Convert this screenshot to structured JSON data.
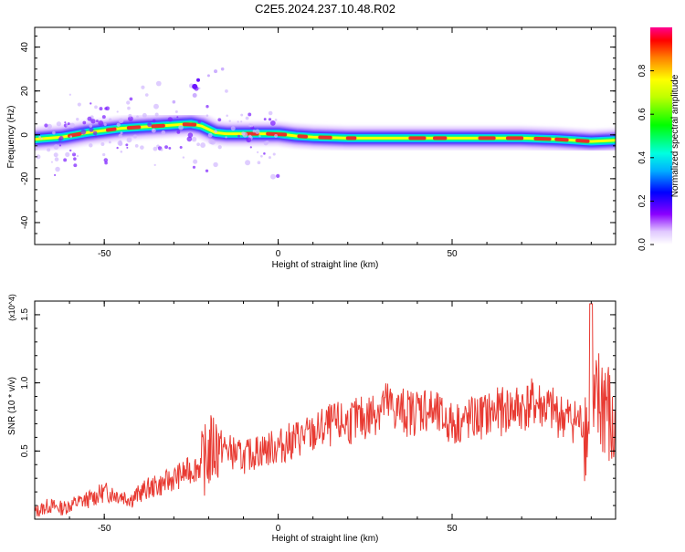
{
  "title": "C2E5.2024.237.10.48.R02",
  "chart_data": [
    {
      "type": "heatmap",
      "xlabel": "Height of straight line (km)",
      "ylabel": "Frequency (Hz)",
      "xlim": [
        -70,
        97
      ],
      "ylim": [
        -50,
        49
      ],
      "xticks": [
        -50,
        0,
        50
      ],
      "yticks": [
        -40,
        -20,
        0,
        20,
        40
      ],
      "colorbar": {
        "label": "Normalized spectral amplitude",
        "range": [
          0,
          1
        ],
        "ticks": [
          "0.0",
          "0.2",
          "0.4",
          "0.6",
          "0.8"
        ]
      },
      "ridge": {
        "x": [
          -70,
          -62,
          -55,
          -50,
          -45,
          -40,
          -35,
          -30,
          -25,
          -22,
          -18,
          -15,
          -10,
          -5,
          0,
          5,
          10,
          20,
          30,
          40,
          50,
          60,
          70,
          80,
          85,
          90,
          97
        ],
        "y": [
          -2,
          -1,
          1,
          2,
          3,
          3.5,
          4,
          4.5,
          5,
          4,
          1,
          0.5,
          0.5,
          0.5,
          0.5,
          -0.5,
          -1,
          -1.5,
          -1.5,
          -1.5,
          -1.5,
          -1.5,
          -1.5,
          -2,
          -2.5,
          -3,
          -2.5
        ]
      }
    },
    {
      "type": "line",
      "xlabel": "Height of straight line (km)",
      "ylabel": "SNR (10 * v/v)",
      "yscale_label": "(x10^4)",
      "xlim": [
        -70,
        97
      ],
      "ylim": [
        0,
        1.6
      ],
      "xticks": [
        -50,
        0,
        50
      ],
      "yticks": [
        "0.5",
        "1.0",
        "1.5"
      ],
      "series": [
        {
          "color": "#e83a32",
          "x": [
            -70,
            -66,
            -62,
            -58,
            -54,
            -50,
            -46,
            -42,
            -38,
            -34,
            -30,
            -26,
            -22,
            -18,
            -14,
            -10,
            -6,
            -2,
            2,
            6,
            10,
            14,
            18,
            22,
            26,
            30,
            34,
            38,
            42,
            46,
            50,
            54,
            58,
            62,
            66,
            70,
            74,
            78,
            82,
            86,
            88,
            90,
            92,
            94,
            96
          ],
          "y": [
            0.05,
            0.1,
            0.08,
            0.12,
            0.15,
            0.2,
            0.18,
            0.15,
            0.22,
            0.25,
            0.3,
            0.35,
            0.4,
            0.55,
            0.5,
            0.45,
            0.5,
            0.52,
            0.55,
            0.6,
            0.62,
            0.68,
            0.7,
            0.72,
            0.75,
            0.85,
            0.8,
            0.78,
            0.82,
            0.75,
            0.7,
            0.72,
            0.75,
            0.78,
            0.8,
            0.82,
            0.85,
            0.8,
            0.75,
            0.72,
            0.7,
            0.65,
            0.8,
            0.9,
            0.6
          ]
        }
      ]
    }
  ]
}
